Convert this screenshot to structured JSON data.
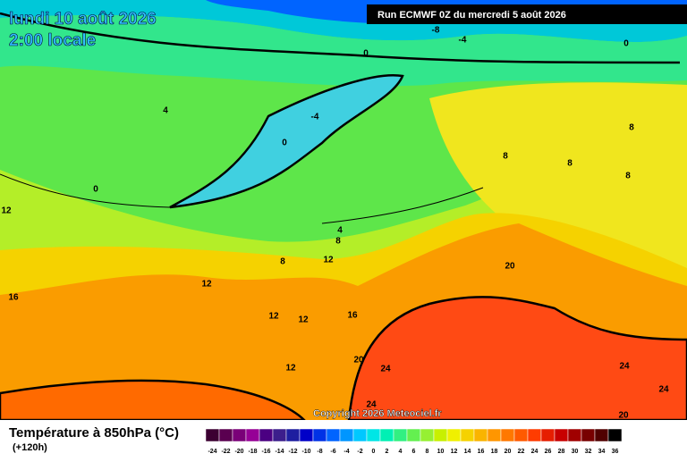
{
  "header": {
    "date": "lundi 10 août 2026",
    "time": "2:00 locale",
    "run": "Run ECMWF 0Z du mercredi 5 août 2026",
    "copyright": "Copyright 2026 Meteociel.fr"
  },
  "legend": {
    "title": "Température à 850hPa (°C)",
    "lead": "(+120h)",
    "levels": [
      -24,
      -22,
      -20,
      -18,
      -16,
      -14,
      -12,
      -10,
      -8,
      -6,
      -4,
      -2,
      0,
      2,
      4,
      6,
      8,
      10,
      12,
      14,
      16,
      18,
      20,
      22,
      24,
      26,
      28,
      30,
      32,
      34,
      36
    ],
    "colors": [
      "#3c0032",
      "#5a0050",
      "#7a0078",
      "#960096",
      "#4b0082",
      "#3c1e8c",
      "#1e1ea0",
      "#0000c8",
      "#0032e6",
      "#0064ff",
      "#0096ff",
      "#00c8ff",
      "#00e6e6",
      "#00f0b4",
      "#32f082",
      "#64f050",
      "#96f032",
      "#c8f000",
      "#f0f000",
      "#f5d200",
      "#fab400",
      "#ff9600",
      "#ff7800",
      "#ff5a00",
      "#ff3c00",
      "#e61e00",
      "#c80000",
      "#a00000",
      "#780000",
      "#500000",
      "#000000"
    ]
  },
  "contour_labels": [
    -8,
    -4,
    0,
    0,
    -4,
    4,
    0,
    0,
    8,
    8,
    8,
    8,
    12,
    4,
    8,
    8,
    12,
    20,
    12,
    16,
    12,
    12,
    16,
    20,
    24,
    12,
    24,
    24,
    24,
    20
  ]
}
